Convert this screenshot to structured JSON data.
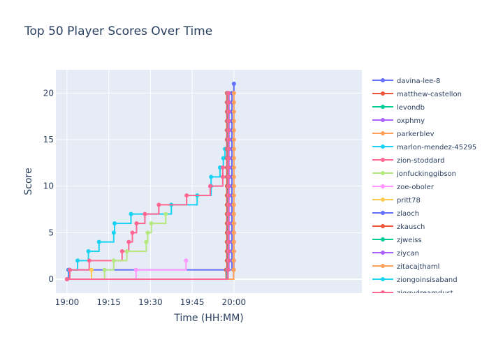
{
  "chart_data": {
    "type": "line",
    "line_shape": "step",
    "title": "Top 50 Player Scores Over Time",
    "xlabel": "Time (HH:MM)",
    "ylabel": "Score",
    "x_unit": "minutes after 19:00",
    "xlim": [
      -4,
      106
    ],
    "ylim": [
      -1.5,
      22.5
    ],
    "x_ticks": [
      {
        "value": 0,
        "label": "19:00"
      },
      {
        "value": 15,
        "label": "19:15"
      },
      {
        "value": 30,
        "label": "19:30"
      },
      {
        "value": 45,
        "label": "19:45"
      },
      {
        "value": 60,
        "label": "20:00"
      }
    ],
    "y_ticks": [
      0,
      5,
      10,
      15,
      20
    ],
    "grid": true,
    "legend_position": "right",
    "plot_bgcolor": "#e5ecf6",
    "series": [
      {
        "name": "davina-lee-8",
        "color": "#636efa",
        "x": [
          0,
          0.5,
          59.3,
          60
        ],
        "y": [
          0,
          1,
          20,
          21
        ]
      },
      {
        "name": "matthew-castellon",
        "color": "#ef553b",
        "x": [
          0,
          57.2,
          57.5
        ],
        "y": [
          0,
          1,
          20
        ]
      },
      {
        "name": "levondb",
        "color": "#00cc96",
        "x": [
          0,
          57.5,
          57.8
        ],
        "y": [
          0,
          1,
          20
        ]
      },
      {
        "name": "oxphmy",
        "color": "#ab63fa",
        "x": [
          0,
          59.9,
          60
        ],
        "y": [
          0,
          1,
          6
        ]
      },
      {
        "name": "parkerblev",
        "color": "#ffa15a",
        "x": [
          0,
          59.9,
          60
        ],
        "y": [
          0,
          2,
          20
        ]
      },
      {
        "name": "marlon-mendez-45295",
        "color": "#19d3f3",
        "x": [
          0,
          0.8,
          3.8,
          7.7,
          11.5,
          16.8,
          17.1,
          23.0,
          37.5,
          46.8,
          51.8,
          55.0,
          56.2,
          56.8,
          57.5,
          58.2
        ],
        "y": [
          0,
          1,
          2,
          3,
          4,
          5,
          6,
          7,
          8,
          9,
          11,
          12,
          13,
          14,
          15,
          20
        ]
      },
      {
        "name": "zion-stoddard",
        "color": "#ff6692",
        "x": [
          0,
          1.0,
          8.0,
          19.8,
          22.2,
          23.5,
          25.0,
          28.0,
          33.0,
          43.0,
          51.5,
          56.0,
          57.5
        ],
        "y": [
          0,
          1,
          2,
          3,
          4,
          5,
          6,
          7,
          8,
          9,
          10,
          12,
          20
        ]
      },
      {
        "name": "jonfuckinggibson",
        "color": "#b6e880",
        "x": [
          0,
          13.5,
          16.8,
          21.5,
          28.5,
          29.0,
          30.3,
          35.5
        ],
        "y": [
          0,
          1,
          2,
          3,
          4,
          5,
          6,
          7
        ]
      },
      {
        "name": "zoe-oboler",
        "color": "#ff97ff",
        "x": [
          0,
          24.8,
          42.8
        ],
        "y": [
          0,
          1,
          2
        ]
      },
      {
        "name": "pritt78",
        "color": "#fecb52",
        "x": [
          0,
          8.8
        ],
        "y": [
          0,
          1
        ]
      },
      {
        "name": "zlaoch",
        "color": "#636efa",
        "x": [
          0,
          57.6,
          57.9
        ],
        "y": [
          0,
          1,
          20
        ]
      },
      {
        "name": "zkausch",
        "color": "#ef553b",
        "x": [
          0,
          57.3,
          57.6
        ],
        "y": [
          0,
          1,
          20
        ]
      },
      {
        "name": "zjweiss",
        "color": "#00cc96",
        "x": [
          0,
          57.8,
          58.1
        ],
        "y": [
          0,
          1,
          20
        ]
      },
      {
        "name": "ziycan",
        "color": "#ab63fa",
        "x": [
          0,
          57.9,
          58.2
        ],
        "y": [
          0,
          1,
          20
        ]
      },
      {
        "name": "zitacajthaml",
        "color": "#ffa15a",
        "x": [
          0,
          59.9
        ],
        "y": [
          0,
          8
        ]
      },
      {
        "name": "ziongoinsisaband",
        "color": "#19d3f3",
        "x": [
          0,
          57.6,
          57.9
        ],
        "y": [
          0,
          1,
          20
        ]
      },
      {
        "name": "ziggydreamdust",
        "color": "#ff6692",
        "x": [
          0,
          57.8,
          58.0
        ],
        "y": [
          0,
          1,
          20
        ]
      }
    ]
  }
}
